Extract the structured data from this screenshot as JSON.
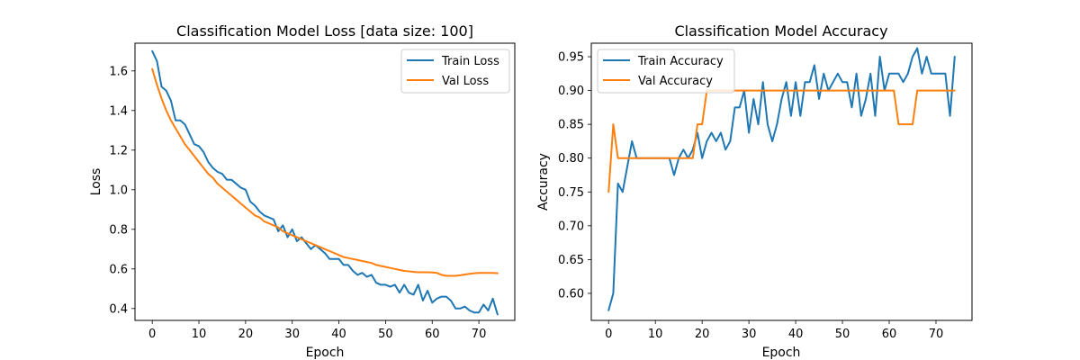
{
  "chart_data": [
    {
      "type": "line",
      "title": "Classification Model Loss [data size: 100]",
      "xlabel": "Epoch",
      "ylabel": "Loss",
      "xlim": [
        -3.7,
        77.7
      ],
      "ylim": [
        0.34,
        1.74
      ],
      "xticks": [
        0,
        10,
        20,
        30,
        40,
        50,
        60,
        70
      ],
      "yticks": [
        0.4,
        0.6,
        0.8,
        1.0,
        1.2,
        1.4,
        1.6
      ],
      "ytick_labels": [
        "0.4",
        "0.6",
        "0.8",
        "1.0",
        "1.2",
        "1.4",
        "1.6"
      ],
      "legend_position": "upper right",
      "x": [
        0,
        1,
        2,
        3,
        4,
        5,
        6,
        7,
        8,
        9,
        10,
        11,
        12,
        13,
        14,
        15,
        16,
        17,
        18,
        19,
        20,
        21,
        22,
        23,
        24,
        25,
        26,
        27,
        28,
        29,
        30,
        31,
        32,
        33,
        34,
        35,
        36,
        37,
        38,
        39,
        40,
        41,
        42,
        43,
        44,
        45,
        46,
        47,
        48,
        49,
        50,
        51,
        52,
        53,
        54,
        55,
        56,
        57,
        58,
        59,
        60,
        61,
        62,
        63,
        64,
        65,
        66,
        67,
        68,
        69,
        70,
        71,
        72,
        73,
        74
      ],
      "series": [
        {
          "name": "Train Loss",
          "color": "#1f77b4",
          "values": [
            1.7,
            1.65,
            1.52,
            1.5,
            1.45,
            1.35,
            1.35,
            1.33,
            1.28,
            1.23,
            1.22,
            1.19,
            1.14,
            1.11,
            1.09,
            1.08,
            1.05,
            1.05,
            1.03,
            1.01,
            1.0,
            0.94,
            0.92,
            0.89,
            0.87,
            0.86,
            0.85,
            0.79,
            0.82,
            0.76,
            0.8,
            0.74,
            0.76,
            0.73,
            0.7,
            0.72,
            0.7,
            0.68,
            0.65,
            0.65,
            0.65,
            0.62,
            0.62,
            0.59,
            0.57,
            0.58,
            0.56,
            0.57,
            0.53,
            0.52,
            0.52,
            0.51,
            0.52,
            0.48,
            0.52,
            0.48,
            0.47,
            0.52,
            0.44,
            0.49,
            0.43,
            0.45,
            0.46,
            0.46,
            0.44,
            0.4,
            0.4,
            0.41,
            0.39,
            0.38,
            0.38,
            0.42,
            0.39,
            0.45,
            0.37
          ]
        },
        {
          "name": "Val Loss",
          "color": "#ff7f0e",
          "values": [
            1.61,
            1.53,
            1.46,
            1.4,
            1.35,
            1.31,
            1.27,
            1.23,
            1.2,
            1.17,
            1.14,
            1.11,
            1.08,
            1.06,
            1.03,
            1.01,
            0.99,
            0.97,
            0.95,
            0.93,
            0.91,
            0.89,
            0.87,
            0.86,
            0.84,
            0.83,
            0.82,
            0.81,
            0.79,
            0.78,
            0.77,
            0.76,
            0.75,
            0.74,
            0.73,
            0.72,
            0.71,
            0.7,
            0.69,
            0.68,
            0.67,
            0.66,
            0.655,
            0.65,
            0.645,
            0.64,
            0.635,
            0.63,
            0.62,
            0.615,
            0.61,
            0.605,
            0.6,
            0.595,
            0.59,
            0.588,
            0.585,
            0.583,
            0.583,
            0.583,
            0.582,
            0.58,
            0.57,
            0.565,
            0.565,
            0.565,
            0.568,
            0.572,
            0.575,
            0.578,
            0.58,
            0.58,
            0.58,
            0.58,
            0.578
          ]
        }
      ]
    },
    {
      "type": "line",
      "title": "Classification Model Accuracy",
      "xlabel": "Epoch",
      "ylabel": "Accuracy",
      "xlim": [
        -3.7,
        77.7
      ],
      "ylim": [
        0.56,
        0.97
      ],
      "xticks": [
        0,
        10,
        20,
        30,
        40,
        50,
        60,
        70
      ],
      "yticks": [
        0.6,
        0.65,
        0.7,
        0.75,
        0.8,
        0.85,
        0.9,
        0.95
      ],
      "ytick_labels": [
        "0.60",
        "0.65",
        "0.70",
        "0.75",
        "0.80",
        "0.85",
        "0.90",
        "0.95"
      ],
      "legend_position": "upper left",
      "x": [
        0,
        1,
        2,
        3,
        4,
        5,
        6,
        7,
        8,
        9,
        10,
        11,
        12,
        13,
        14,
        15,
        16,
        17,
        18,
        19,
        20,
        21,
        22,
        23,
        24,
        25,
        26,
        27,
        28,
        29,
        30,
        31,
        32,
        33,
        34,
        35,
        36,
        37,
        38,
        39,
        40,
        41,
        42,
        43,
        44,
        45,
        46,
        47,
        48,
        49,
        50,
        51,
        52,
        53,
        54,
        55,
        56,
        57,
        58,
        59,
        60,
        61,
        62,
        63,
        64,
        65,
        66,
        67,
        68,
        69,
        70,
        71,
        72,
        73,
        74
      ],
      "series": [
        {
          "name": "Train Accuracy",
          "color": "#1f77b4",
          "values": [
            0.575,
            0.6,
            0.7625,
            0.75,
            0.7875,
            0.825,
            0.8,
            0.8,
            0.8,
            0.8,
            0.8,
            0.8,
            0.8,
            0.8,
            0.775,
            0.8,
            0.8125,
            0.8,
            0.8125,
            0.8375,
            0.8,
            0.825,
            0.8375,
            0.825,
            0.8375,
            0.8125,
            0.825,
            0.875,
            0.875,
            0.9,
            0.8375,
            0.8875,
            0.85,
            0.9125,
            0.85,
            0.825,
            0.85,
            0.8875,
            0.9125,
            0.8625,
            0.9125,
            0.8625,
            0.9125,
            0.9125,
            0.9375,
            0.8875,
            0.925,
            0.9,
            0.9125,
            0.925,
            0.9125,
            0.9125,
            0.875,
            0.925,
            0.8625,
            0.8875,
            0.925,
            0.8625,
            0.95,
            0.9,
            0.925,
            0.925,
            0.925,
            0.9125,
            0.925,
            0.95,
            0.9625,
            0.925,
            0.95,
            0.925,
            0.925,
            0.925,
            0.925,
            0.8625,
            0.95
          ]
        },
        {
          "name": "Val Accuracy",
          "color": "#ff7f0e",
          "values": [
            0.75,
            0.85,
            0.8,
            0.8,
            0.8,
            0.8,
            0.8,
            0.8,
            0.8,
            0.8,
            0.8,
            0.8,
            0.8,
            0.8,
            0.8,
            0.8,
            0.8,
            0.8,
            0.8,
            0.85,
            0.85,
            0.9,
            0.9,
            0.9,
            0.9,
            0.9,
            0.9,
            0.9,
            0.9,
            0.9,
            0.9,
            0.9,
            0.9,
            0.9,
            0.9,
            0.9,
            0.9,
            0.9,
            0.9,
            0.9,
            0.9,
            0.9,
            0.9,
            0.9,
            0.9,
            0.9,
            0.9,
            0.9,
            0.9,
            0.9,
            0.9,
            0.9,
            0.9,
            0.9,
            0.9,
            0.9,
            0.9,
            0.9,
            0.9,
            0.9,
            0.9,
            0.9,
            0.85,
            0.85,
            0.85,
            0.85,
            0.9,
            0.9,
            0.9,
            0.9,
            0.9,
            0.9,
            0.9,
            0.9,
            0.9
          ]
        }
      ]
    }
  ]
}
